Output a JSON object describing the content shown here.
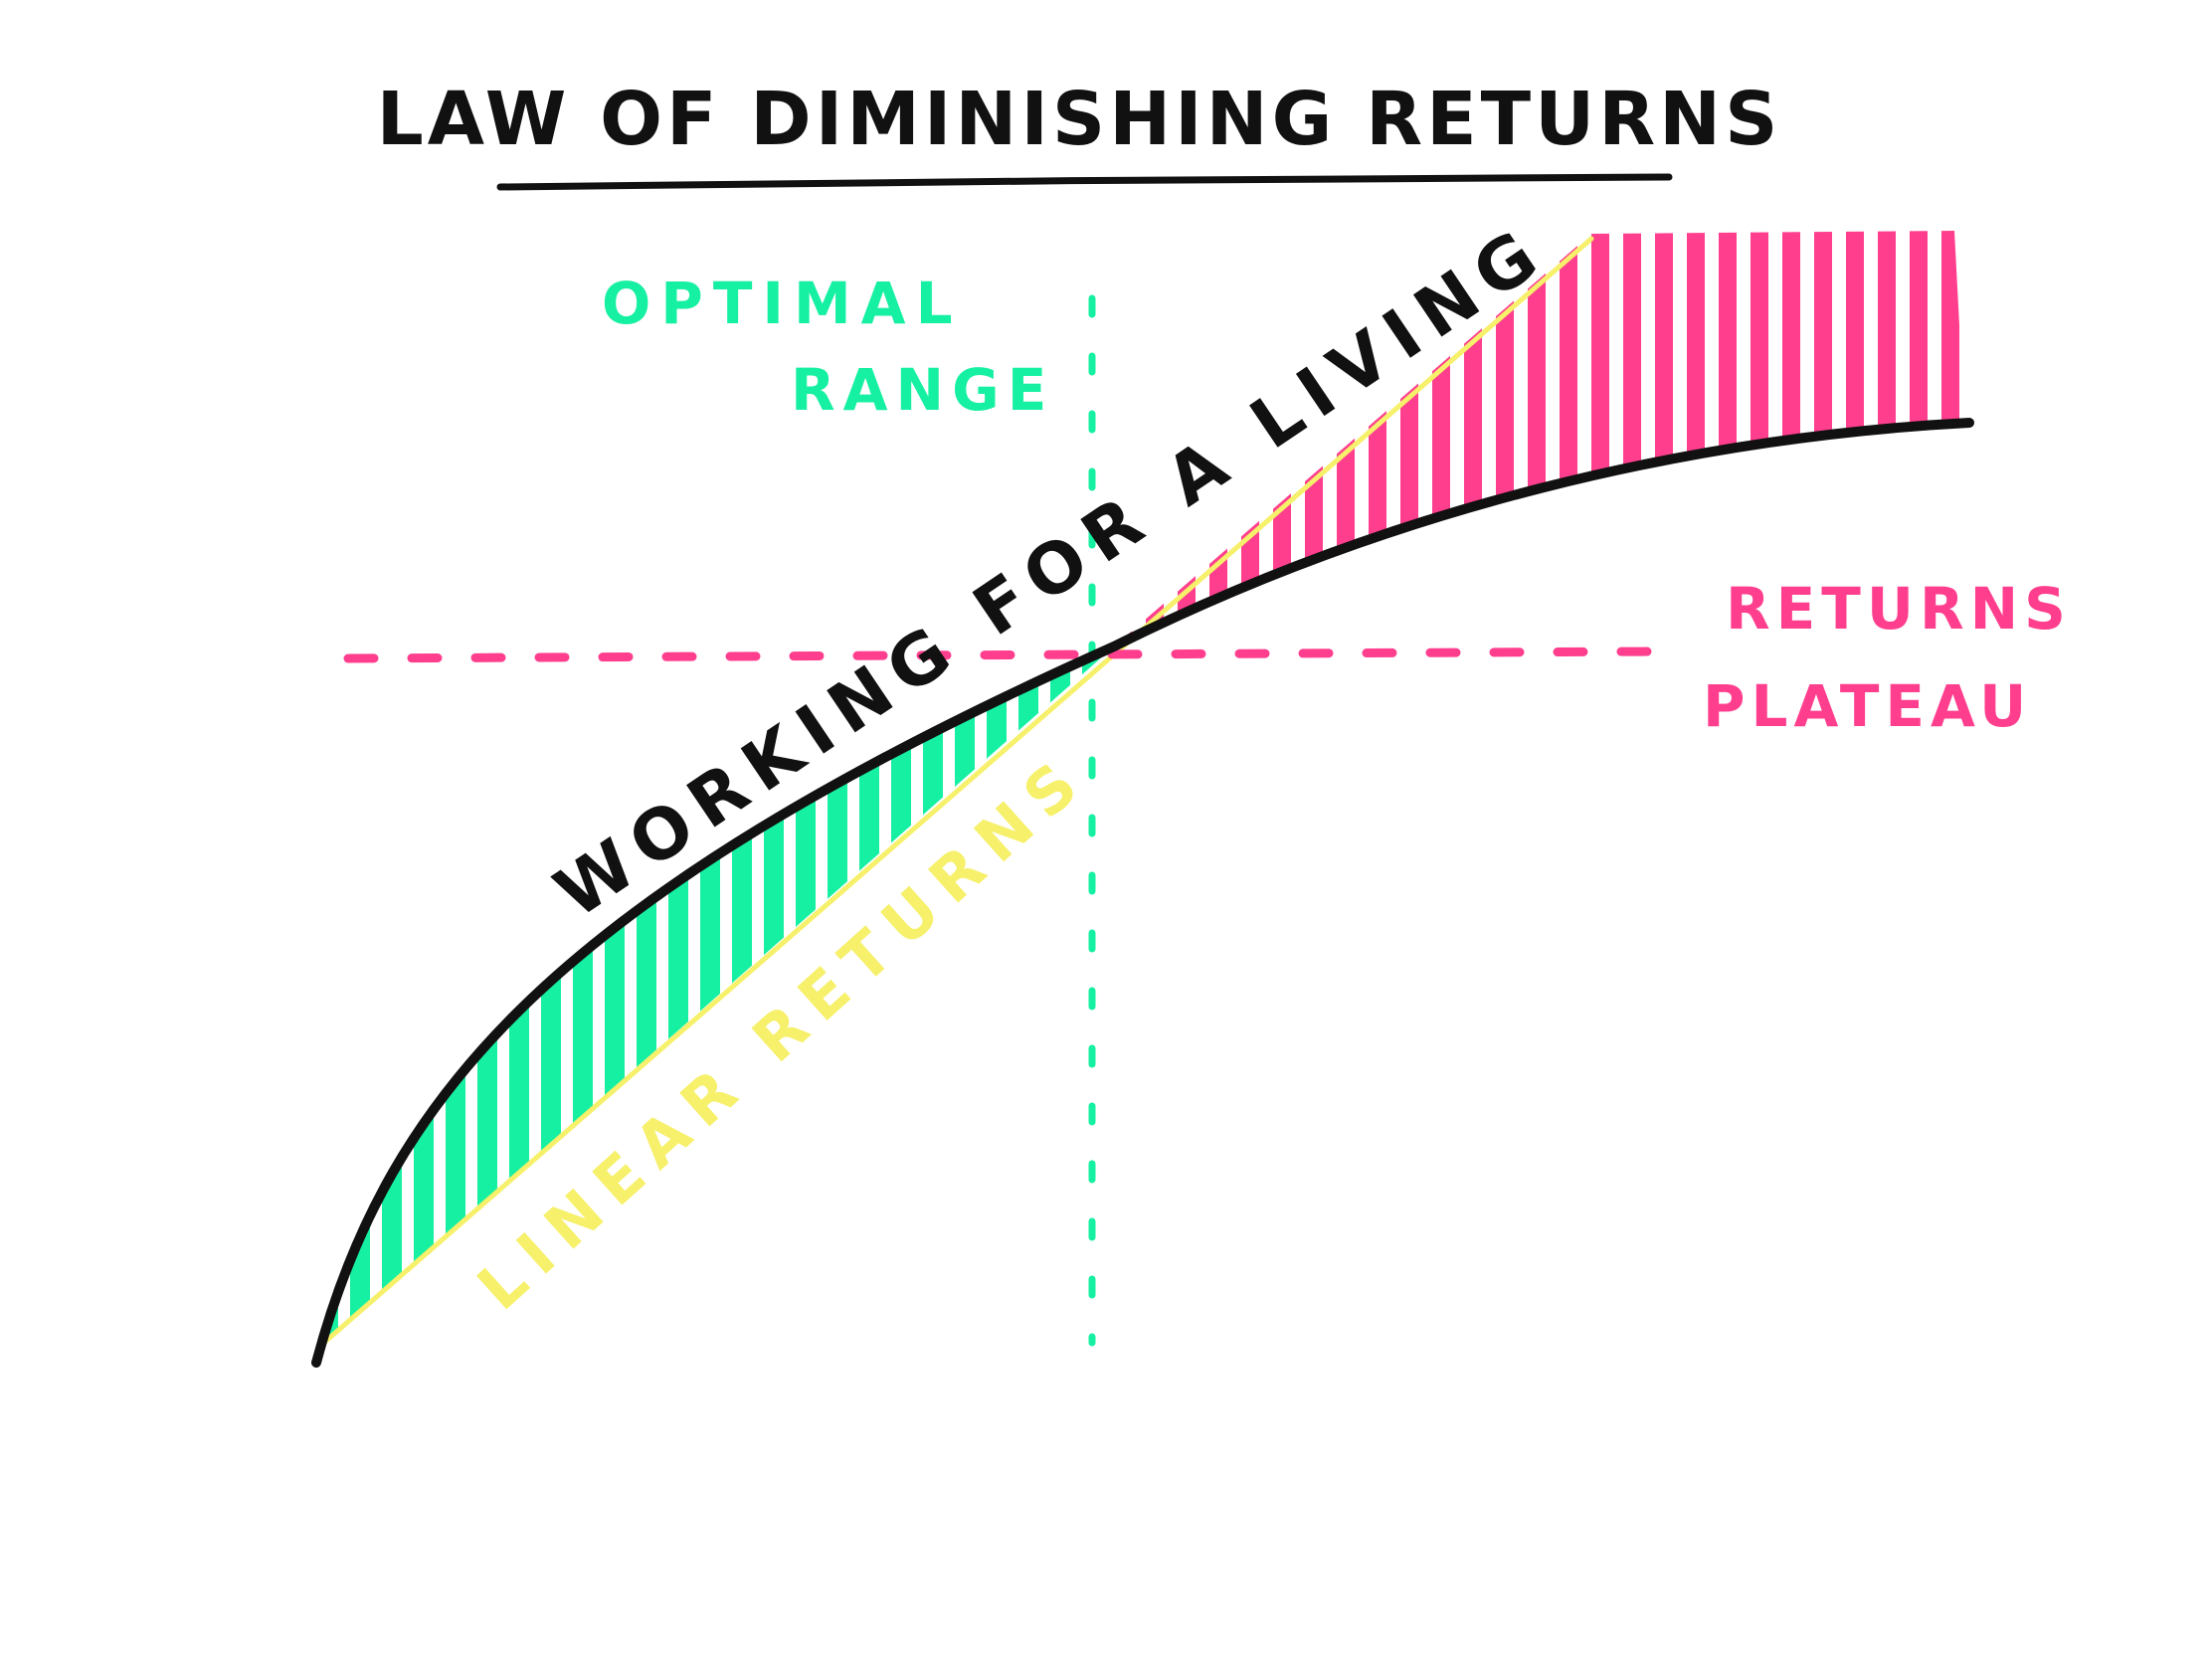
{
  "title": "LAW OF DIMINISHING RETURNS",
  "labels": {
    "optimal_line1": "OPTIMAL",
    "optimal_line2": "RANGE",
    "returns_plateau_line1": "RETURNS",
    "returns_plateau_line2": "PLATEAU",
    "curve_label": "WORKING FOR A LIVING",
    "linear_label": "LINEAR RETURNS"
  },
  "colors": {
    "ink": "#111111",
    "green": "#16f0a2",
    "pink": "#ff3f8e",
    "yellow": "#f6f06a",
    "background": "#ffffff"
  }
}
